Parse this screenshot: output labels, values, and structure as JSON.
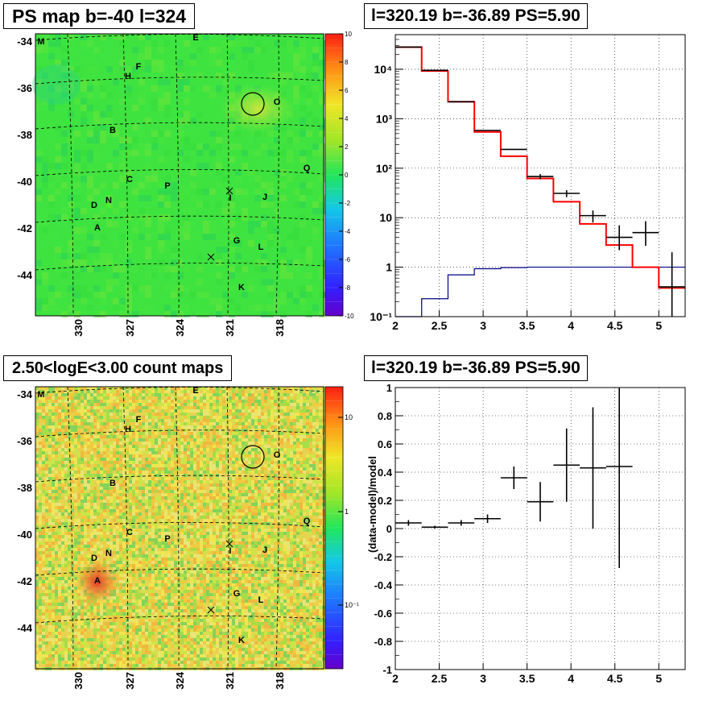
{
  "panels": {
    "ps_map_title": "PS map b=-40 l=324",
    "spectrum_title": "l=320.19 b=-36.89 PS=5.90",
    "count_map_title": "2.50<logE<3.00 count maps",
    "residual_title": "l=320.19 b=-36.89 PS=5.90"
  },
  "chart_data": [
    {
      "type": "heatmap",
      "title": "PS map b=-40 l=324",
      "x_ticks": [
        "330",
        "327",
        "324",
        "321",
        "318"
      ],
      "y_ticks": [
        "-34",
        "-36",
        "-38",
        "-40",
        "-42",
        "-44"
      ],
      "colorbar_ticks": [
        "10",
        "8",
        "6",
        "4",
        "2",
        "0",
        "-2",
        "-4",
        "-6",
        "-8",
        "-10"
      ],
      "colorbar_range": [
        -10,
        10
      ],
      "source_labels": [
        "M",
        "E",
        "F",
        "H",
        "O",
        "B",
        "Q",
        "C",
        "P",
        "I",
        "J",
        "D",
        "N",
        "A",
        "G",
        "L",
        "K"
      ],
      "marked_source": "O",
      "colors": {
        "background": "#3fe33f",
        "hotspot": "#c8e63c"
      }
    },
    {
      "type": "line",
      "title": "l=320.19 b=-36.89 PS=5.90",
      "y_scale": "log",
      "xlim": [
        2,
        5.3
      ],
      "ylim": [
        0.1,
        50000
      ],
      "x_ticks": [
        "2",
        "2.5",
        "3",
        "3.5",
        "4",
        "4.5",
        "5"
      ],
      "y_ticks": [
        "10⁻¹",
        "1",
        "10",
        "10²",
        "10³",
        "10⁴"
      ],
      "bin_edges": [
        2.0,
        2.3,
        2.6,
        2.9,
        3.2,
        3.5,
        3.8,
        4.1,
        4.4,
        4.7,
        5.0,
        5.3
      ],
      "series": [
        {
          "role": "data",
          "color": "#000000",
          "x": [
            2.15,
            2.45,
            2.75,
            3.05,
            3.35,
            3.65,
            3.95,
            4.25,
            4.55,
            4.85,
            5.15
          ],
          "y": [
            28000,
            9500,
            2200,
            580,
            240,
            68,
            31,
            11,
            4,
            5,
            0.4
          ],
          "y_err_low": [
            0,
            0,
            0,
            0,
            0,
            8,
            5,
            3,
            1.8,
            2.3,
            0.3
          ],
          "y_err_high": [
            0,
            0,
            0,
            0,
            0,
            8,
            5,
            3,
            3,
            3.5,
            1.6
          ]
        },
        {
          "role": "model",
          "color": "#ff0000",
          "y": [
            28000,
            9200,
            2200,
            540,
            175,
            62,
            21,
            7.5,
            2.8,
            1.0,
            0.38
          ]
        },
        {
          "role": "background",
          "color": "#00008b",
          "y": [
            0.1,
            0.23,
            0.7,
            0.93,
            0.98,
            1.0,
            1.0,
            1.0,
            1.0,
            1.0,
            1.0
          ]
        }
      ]
    },
    {
      "type": "heatmap",
      "title": "2.50<logE<3.00 count maps",
      "x_ticks": [
        "330",
        "327",
        "324",
        "321",
        "318"
      ],
      "y_ticks": [
        "-34",
        "-36",
        "-38",
        "-40",
        "-42",
        "-44"
      ],
      "colorbar_ticks": [
        "10",
        "1",
        "10⁻¹"
      ],
      "colorbar_scale": "log",
      "source_labels": [
        "M",
        "E",
        "F",
        "H",
        "O",
        "B",
        "Q",
        "C",
        "P",
        "I",
        "J",
        "D",
        "N",
        "A",
        "G",
        "L",
        "K"
      ],
      "marked_source": "O",
      "colors": {
        "background": "#f0e060",
        "hotspot": "#d23c28"
      }
    },
    {
      "type": "scatter",
      "title": "l=320.19 b=-36.89 PS=5.90",
      "ylabel": "(data-model)/model",
      "xlim": [
        2,
        5.3
      ],
      "ylim": [
        -1,
        1
      ],
      "x_ticks": [
        "2",
        "2.5",
        "3",
        "3.5",
        "4",
        "4.5",
        "5"
      ],
      "y_ticks": [
        "1",
        "0.8",
        "0.6",
        "0.4",
        "0.2",
        "0",
        "-0.2",
        "-0.4",
        "-0.6",
        "-0.8",
        "-1"
      ],
      "x": [
        2.15,
        2.45,
        2.75,
        3.05,
        3.35,
        3.65,
        3.95,
        4.25,
        4.55
      ],
      "y": [
        0.04,
        0.01,
        0.04,
        0.07,
        0.36,
        0.19,
        0.45,
        0.43,
        0.44
      ],
      "y_err": [
        0.02,
        0.01,
        0.02,
        0.03,
        0.08,
        0.14,
        0.26,
        0.43,
        0.72
      ],
      "x_halfwidth": 0.15,
      "color": "#000000"
    }
  ]
}
